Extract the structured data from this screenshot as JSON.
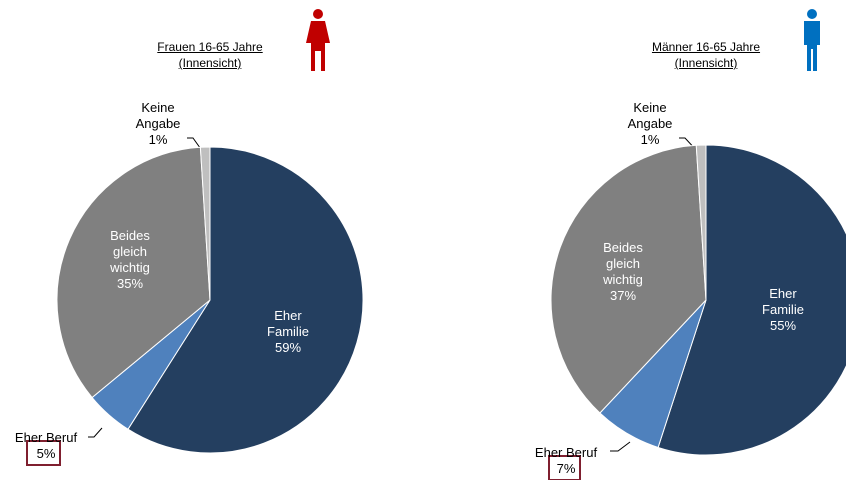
{
  "chart_data": [
    {
      "type": "pie",
      "title": "Frauen 16-65 Jahre",
      "subtitle": "(Innensicht)",
      "categories": [
        "Eher Familie",
        "Eher Beruf",
        "Beides gleich wichtig",
        "Keine Angabe"
      ],
      "values": [
        59,
        5,
        35,
        1
      ],
      "value_labels": [
        "59%",
        "5%",
        "35%",
        "1%"
      ],
      "colors": [
        "#243f60",
        "#4f81bd",
        "#808080",
        "#bfbfbf"
      ]
    },
    {
      "type": "pie",
      "title": "Männer 16-65 Jahre",
      "subtitle": "(Innensicht)",
      "categories": [
        "Eher Familie",
        "Eher Beruf",
        "Beides gleich wichtig",
        "Keine Angabe"
      ],
      "values": [
        55,
        7,
        37,
        1
      ],
      "value_labels": [
        "55%",
        "7%",
        "37%",
        "1%"
      ],
      "colors": [
        "#243f60",
        "#4f81bd",
        "#808080",
        "#bfbfbf"
      ]
    }
  ]
}
